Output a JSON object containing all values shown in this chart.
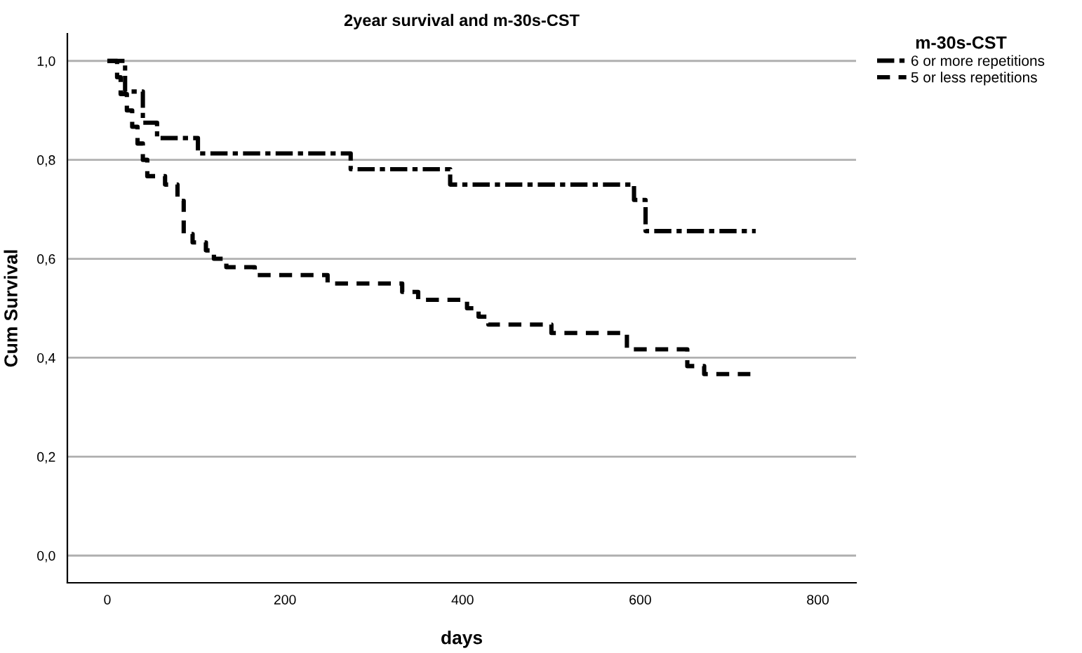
{
  "chart_data": {
    "type": "step",
    "title": "2year survival and m-30s-CST",
    "xlabel": "days",
    "ylabel": "Cum Survival",
    "legend_title": "m-30s-CST",
    "legend": "right",
    "series": [
      {
        "name": "6 or more repetitions",
        "color": "#000000",
        "line_style": "dashdot",
        "x": [
          0,
          20,
          40,
          56,
          102,
          274,
          386,
          593,
          606,
          730
        ],
        "values": [
          1.0,
          0.938,
          0.875,
          0.844,
          0.813,
          0.781,
          0.75,
          0.719,
          0.656,
          0.656
        ]
      },
      {
        "name": "5 or less repetitions",
        "color": "#000000",
        "line_style": "dashed",
        "x": [
          0,
          11,
          15,
          22,
          28,
          34,
          40,
          45,
          65,
          79,
          86,
          96,
          111,
          120,
          134,
          166,
          248,
          332,
          350,
          405,
          418,
          429,
          500,
          585,
          653,
          672,
          724
        ],
        "values": [
          1.0,
          0.967,
          0.933,
          0.9,
          0.867,
          0.833,
          0.8,
          0.767,
          0.75,
          0.717,
          0.65,
          0.633,
          0.617,
          0.6,
          0.583,
          0.567,
          0.55,
          0.533,
          0.517,
          0.5,
          0.483,
          0.467,
          0.45,
          0.417,
          0.383,
          0.367,
          0.367
        ]
      }
    ],
    "xlim": [
      -45,
      843
    ],
    "xticks": [
      0,
      200,
      400,
      600,
      800
    ],
    "ylim": [
      -0.055,
      1.055
    ],
    "yticks": [
      {
        "value": 0,
        "label": "0,0"
      },
      {
        "value": 0.2,
        "label": "0,2"
      },
      {
        "value": 0.4,
        "label": "0,4"
      },
      {
        "value": 0.6,
        "label": "0,6"
      },
      {
        "value": 0.8,
        "label": "0,8"
      },
      {
        "value": 1.0,
        "label": "1,0"
      }
    ],
    "grid": "y"
  }
}
